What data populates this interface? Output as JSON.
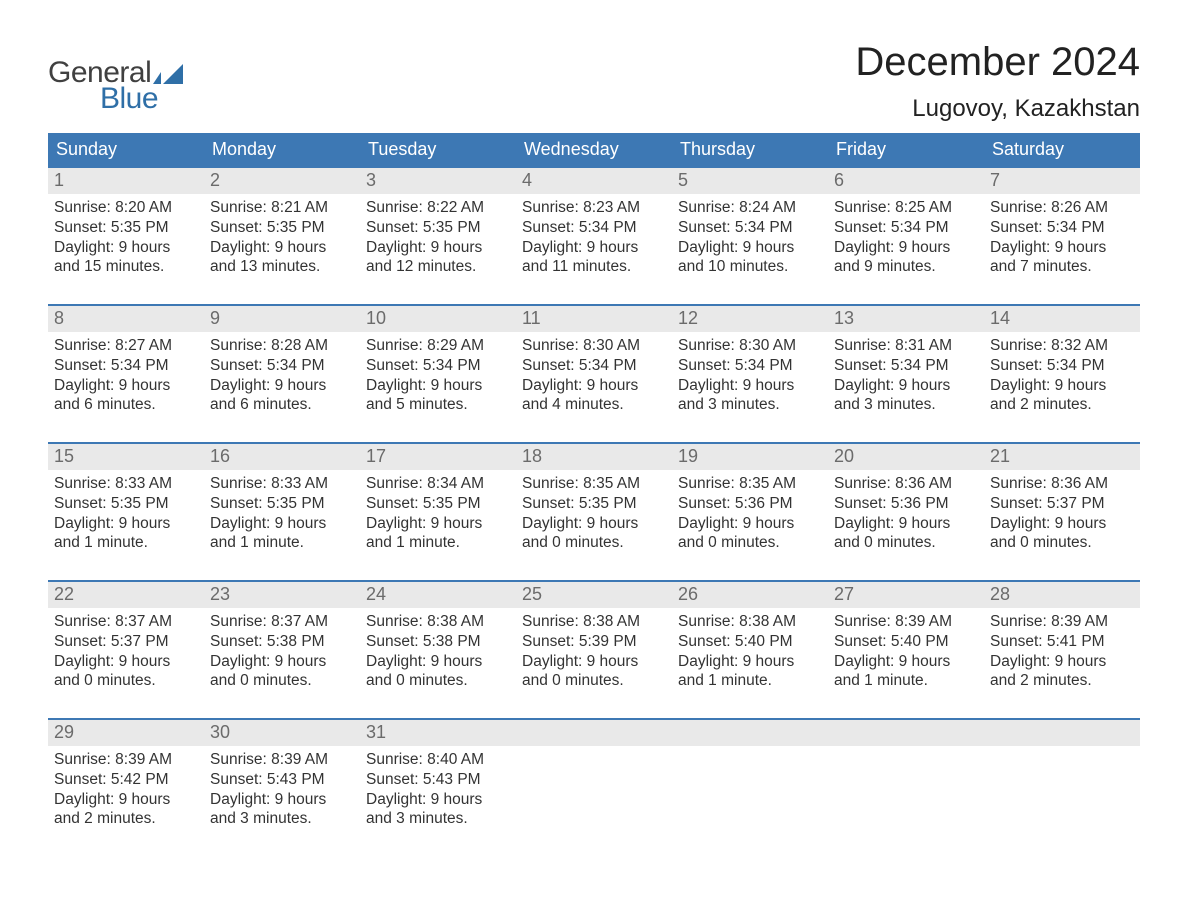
{
  "logo": {
    "general": "General",
    "blue": "Blue",
    "flag_color": "#2f6fa7"
  },
  "title": "December 2024",
  "location": "Lugovoy, Kazakhstan",
  "colors": {
    "header_bg": "#3d78b4",
    "header_text": "#ffffff",
    "daynum_bg": "#e9e9e9",
    "daynum_text": "#6b6b6b",
    "body_text": "#333333",
    "row_border": "#3d78b4",
    "page_bg": "#ffffff",
    "logo_gray": "#404040",
    "logo_blue": "#2f6fa7"
  },
  "weekdays": [
    "Sunday",
    "Monday",
    "Tuesday",
    "Wednesday",
    "Thursday",
    "Friday",
    "Saturday"
  ],
  "weeks": [
    [
      {
        "n": "1",
        "sr": "Sunrise: 8:20 AM",
        "ss": "Sunset: 5:35 PM",
        "dl": "Daylight: 9 hours and 15 minutes."
      },
      {
        "n": "2",
        "sr": "Sunrise: 8:21 AM",
        "ss": "Sunset: 5:35 PM",
        "dl": "Daylight: 9 hours and 13 minutes."
      },
      {
        "n": "3",
        "sr": "Sunrise: 8:22 AM",
        "ss": "Sunset: 5:35 PM",
        "dl": "Daylight: 9 hours and 12 minutes."
      },
      {
        "n": "4",
        "sr": "Sunrise: 8:23 AM",
        "ss": "Sunset: 5:34 PM",
        "dl": "Daylight: 9 hours and 11 minutes."
      },
      {
        "n": "5",
        "sr": "Sunrise: 8:24 AM",
        "ss": "Sunset: 5:34 PM",
        "dl": "Daylight: 9 hours and 10 minutes."
      },
      {
        "n": "6",
        "sr": "Sunrise: 8:25 AM",
        "ss": "Sunset: 5:34 PM",
        "dl": "Daylight: 9 hours and 9 minutes."
      },
      {
        "n": "7",
        "sr": "Sunrise: 8:26 AM",
        "ss": "Sunset: 5:34 PM",
        "dl": "Daylight: 9 hours and 7 minutes."
      }
    ],
    [
      {
        "n": "8",
        "sr": "Sunrise: 8:27 AM",
        "ss": "Sunset: 5:34 PM",
        "dl": "Daylight: 9 hours and 6 minutes."
      },
      {
        "n": "9",
        "sr": "Sunrise: 8:28 AM",
        "ss": "Sunset: 5:34 PM",
        "dl": "Daylight: 9 hours and 6 minutes."
      },
      {
        "n": "10",
        "sr": "Sunrise: 8:29 AM",
        "ss": "Sunset: 5:34 PM",
        "dl": "Daylight: 9 hours and 5 minutes."
      },
      {
        "n": "11",
        "sr": "Sunrise: 8:30 AM",
        "ss": "Sunset: 5:34 PM",
        "dl": "Daylight: 9 hours and 4 minutes."
      },
      {
        "n": "12",
        "sr": "Sunrise: 8:30 AM",
        "ss": "Sunset: 5:34 PM",
        "dl": "Daylight: 9 hours and 3 minutes."
      },
      {
        "n": "13",
        "sr": "Sunrise: 8:31 AM",
        "ss": "Sunset: 5:34 PM",
        "dl": "Daylight: 9 hours and 3 minutes."
      },
      {
        "n": "14",
        "sr": "Sunrise: 8:32 AM",
        "ss": "Sunset: 5:34 PM",
        "dl": "Daylight: 9 hours and 2 minutes."
      }
    ],
    [
      {
        "n": "15",
        "sr": "Sunrise: 8:33 AM",
        "ss": "Sunset: 5:35 PM",
        "dl": "Daylight: 9 hours and 1 minute."
      },
      {
        "n": "16",
        "sr": "Sunrise: 8:33 AM",
        "ss": "Sunset: 5:35 PM",
        "dl": "Daylight: 9 hours and 1 minute."
      },
      {
        "n": "17",
        "sr": "Sunrise: 8:34 AM",
        "ss": "Sunset: 5:35 PM",
        "dl": "Daylight: 9 hours and 1 minute."
      },
      {
        "n": "18",
        "sr": "Sunrise: 8:35 AM",
        "ss": "Sunset: 5:35 PM",
        "dl": "Daylight: 9 hours and 0 minutes."
      },
      {
        "n": "19",
        "sr": "Sunrise: 8:35 AM",
        "ss": "Sunset: 5:36 PM",
        "dl": "Daylight: 9 hours and 0 minutes."
      },
      {
        "n": "20",
        "sr": "Sunrise: 8:36 AM",
        "ss": "Sunset: 5:36 PM",
        "dl": "Daylight: 9 hours and 0 minutes."
      },
      {
        "n": "21",
        "sr": "Sunrise: 8:36 AM",
        "ss": "Sunset: 5:37 PM",
        "dl": "Daylight: 9 hours and 0 minutes."
      }
    ],
    [
      {
        "n": "22",
        "sr": "Sunrise: 8:37 AM",
        "ss": "Sunset: 5:37 PM",
        "dl": "Daylight: 9 hours and 0 minutes."
      },
      {
        "n": "23",
        "sr": "Sunrise: 8:37 AM",
        "ss": "Sunset: 5:38 PM",
        "dl": "Daylight: 9 hours and 0 minutes."
      },
      {
        "n": "24",
        "sr": "Sunrise: 8:38 AM",
        "ss": "Sunset: 5:38 PM",
        "dl": "Daylight: 9 hours and 0 minutes."
      },
      {
        "n": "25",
        "sr": "Sunrise: 8:38 AM",
        "ss": "Sunset: 5:39 PM",
        "dl": "Daylight: 9 hours and 0 minutes."
      },
      {
        "n": "26",
        "sr": "Sunrise: 8:38 AM",
        "ss": "Sunset: 5:40 PM",
        "dl": "Daylight: 9 hours and 1 minute."
      },
      {
        "n": "27",
        "sr": "Sunrise: 8:39 AM",
        "ss": "Sunset: 5:40 PM",
        "dl": "Daylight: 9 hours and 1 minute."
      },
      {
        "n": "28",
        "sr": "Sunrise: 8:39 AM",
        "ss": "Sunset: 5:41 PM",
        "dl": "Daylight: 9 hours and 2 minutes."
      }
    ],
    [
      {
        "n": "29",
        "sr": "Sunrise: 8:39 AM",
        "ss": "Sunset: 5:42 PM",
        "dl": "Daylight: 9 hours and 2 minutes."
      },
      {
        "n": "30",
        "sr": "Sunrise: 8:39 AM",
        "ss": "Sunset: 5:43 PM",
        "dl": "Daylight: 9 hours and 3 minutes."
      },
      {
        "n": "31",
        "sr": "Sunrise: 8:40 AM",
        "ss": "Sunset: 5:43 PM",
        "dl": "Daylight: 9 hours and 3 minutes."
      },
      null,
      null,
      null,
      null
    ]
  ]
}
